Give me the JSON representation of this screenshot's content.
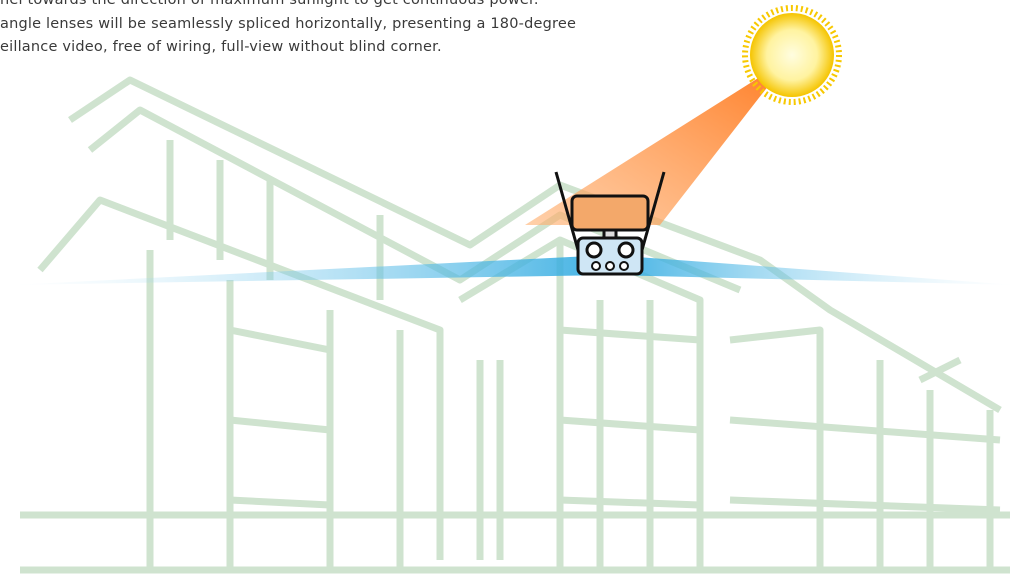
{
  "text": {
    "lines": [
      "nel towards the direction of maximum sunlight to get continuous power.",
      "angle lenses will be seamlessly spliced horizontally, presenting a 180-degree",
      "eillance video, free of wiring, full-view without blind corner."
    ]
  }
}
